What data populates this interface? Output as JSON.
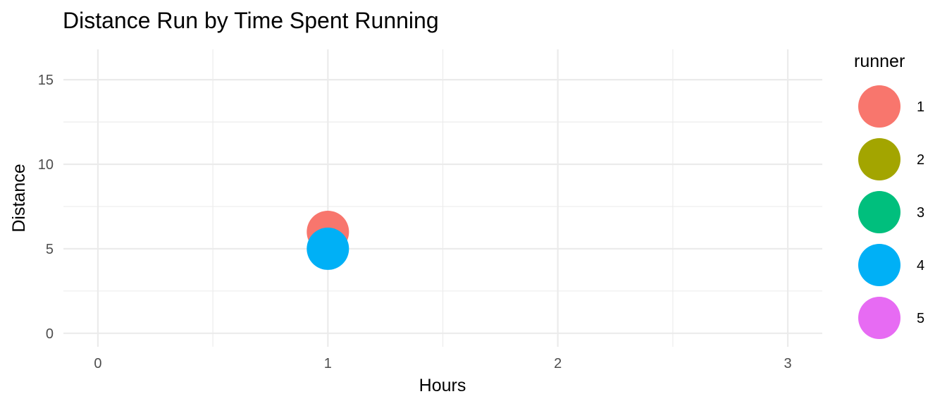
{
  "chart_data": {
    "type": "scatter",
    "title": "Distance Run by Time Spent Running",
    "xlabel": "Hours",
    "ylabel": "Distance",
    "xlim": [
      -0.15,
      3.15
    ],
    "ylim": [
      -0.8,
      16.8
    ],
    "x_ticks": [
      0,
      1,
      2,
      3
    ],
    "y_ticks": [
      0,
      5,
      10,
      15
    ],
    "x_tick_labels": [
      "0",
      "1",
      "2",
      "3"
    ],
    "y_tick_labels": [
      "0",
      "5",
      "10",
      "15"
    ],
    "grid": true,
    "legend": {
      "title": "runner",
      "placement": "right",
      "entries": [
        {
          "label": "1",
          "color": "#F8766D"
        },
        {
          "label": "2",
          "color": "#A3A500"
        },
        {
          "label": "3",
          "color": "#00BF7D"
        },
        {
          "label": "4",
          "color": "#00B0F6"
        },
        {
          "label": "5",
          "color": "#E76BF3"
        }
      ]
    },
    "points": [
      {
        "runner": "1",
        "x": 1,
        "y": 6,
        "color": "#F8766D"
      },
      {
        "runner": "4",
        "x": 1,
        "y": 5,
        "color": "#00B0F6"
      }
    ]
  }
}
